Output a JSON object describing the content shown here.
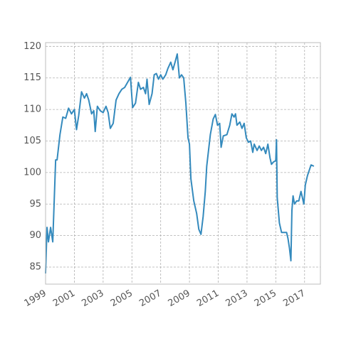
{
  "chart_data": {
    "type": "line",
    "color": "#348abd",
    "grid": true,
    "xlim": [
      1999,
      2018.1
    ],
    "ylim": [
      82.3,
      120.6
    ],
    "xticks": [
      1999,
      2001,
      2003,
      2005,
      2007,
      2009,
      2011,
      2013,
      2015,
      2017
    ],
    "yticks": [
      85,
      90,
      95,
      100,
      105,
      110,
      115,
      120
    ],
    "x": [
      1999.0,
      1999.1,
      1999.2,
      1999.35,
      1999.5,
      1999.7,
      1999.8,
      2000.0,
      2000.2,
      2000.4,
      2000.6,
      2000.8,
      2001.0,
      2001.15,
      2001.3,
      2001.5,
      2001.7,
      2001.85,
      2002.0,
      2002.2,
      2002.35,
      2002.45,
      2002.6,
      2002.8,
      2003.0,
      2003.2,
      2003.35,
      2003.5,
      2003.7,
      2003.9,
      2004.1,
      2004.3,
      2004.5,
      2004.75,
      2004.9,
      2005.05,
      2005.25,
      2005.45,
      2005.6,
      2005.8,
      2005.95,
      2006.05,
      2006.2,
      2006.4,
      2006.55,
      2006.7,
      2006.85,
      2007.0,
      2007.15,
      2007.35,
      2007.5,
      2007.7,
      2007.85,
      2008.0,
      2008.15,
      2008.3,
      2008.45,
      2008.6,
      2008.75,
      2008.9,
      2009.0,
      2009.1,
      2009.3,
      2009.5,
      2009.65,
      2009.8,
      2009.95,
      2010.1,
      2010.2,
      2010.45,
      2010.65,
      2010.8,
      2010.95,
      2011.1,
      2011.2,
      2011.35,
      2011.6,
      2011.8,
      2011.95,
      2012.1,
      2012.2,
      2012.3,
      2012.5,
      2012.65,
      2012.8,
      2012.95,
      2013.1,
      2013.25,
      2013.4,
      2013.5,
      2013.7,
      2013.85,
      2014.0,
      2014.15,
      2014.3,
      2014.45,
      2014.6,
      2014.7,
      2014.85,
      2014.95,
      2015.0,
      2015.05,
      2015.1,
      2015.25,
      2015.4,
      2015.6,
      2015.75,
      2015.85,
      2015.95,
      2016.05,
      2016.12,
      2016.2,
      2016.3,
      2016.45,
      2016.6,
      2016.75,
      2016.85,
      2016.95,
      2017.05,
      2017.2,
      2017.45,
      2017.65
    ],
    "values": [
      84,
      91.3,
      89,
      91.3,
      89,
      102,
      102,
      106,
      108.8,
      108.6,
      110.2,
      109.3,
      110,
      106.8,
      109,
      112.8,
      111.8,
      112.5,
      111.5,
      109.3,
      109.8,
      106.5,
      110.5,
      109.8,
      109.5,
      110.5,
      109.5,
      107,
      107.8,
      111.5,
      112.5,
      113.2,
      113.5,
      114.5,
      115.1,
      110.3,
      111,
      114.3,
      113.2,
      113.5,
      112.5,
      114.8,
      110.8,
      112.5,
      115.5,
      115.7,
      114.8,
      115.5,
      114.8,
      115.5,
      116.5,
      117.5,
      116.3,
      117.5,
      118.8,
      115,
      115.5,
      115,
      111,
      105.5,
      104.5,
      99,
      95.5,
      93.5,
      91,
      90.2,
      93,
      97,
      101,
      106,
      108.5,
      109.2,
      107.5,
      107.8,
      104,
      105.8,
      106,
      107.5,
      109.3,
      108.8,
      109.3,
      107.5,
      108,
      107,
      107.8,
      105.5,
      104.8,
      105,
      103.2,
      104.5,
      103.5,
      104.2,
      103.5,
      104,
      103,
      104.5,
      102.3,
      101.3,
      101.7,
      101.8,
      102,
      105.2,
      96,
      92,
      90.5,
      90.5,
      90.5,
      89.5,
      88,
      86,
      94,
      96.3,
      95,
      95.5,
      95.5,
      97,
      96,
      95,
      98,
      99.5,
      101.2,
      101
    ]
  }
}
